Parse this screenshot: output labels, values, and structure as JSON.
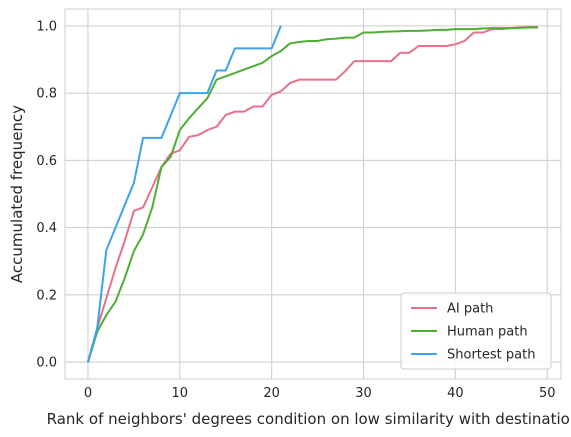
{
  "chart_data": {
    "type": "line",
    "title": "",
    "xlabel": "Rank of neighbors' degrees condition on low similarity with destination",
    "ylabel": "Accumulated frequency",
    "xlim": [
      -2.5,
      51.5
    ],
    "ylim": [
      -0.05,
      1.05
    ],
    "xticks": [
      0,
      10,
      20,
      30,
      40,
      50
    ],
    "yticks": [
      0.0,
      0.2,
      0.4,
      0.6,
      0.8,
      1.0
    ],
    "xtick_labels": [
      "0",
      "10",
      "20",
      "30",
      "40",
      "50"
    ],
    "ytick_labels": [
      "0.0",
      "0.2",
      "0.4",
      "0.6",
      "0.8",
      "1.0"
    ],
    "grid": true,
    "legend_position": "bottom-right",
    "series": [
      {
        "name": "AI path",
        "color": "#e8708a",
        "x": [
          0,
          1,
          2,
          3,
          4,
          5,
          6,
          7,
          8,
          9,
          10,
          11,
          12,
          13,
          14,
          15,
          16,
          17,
          18,
          19,
          20,
          21,
          22,
          23,
          24,
          25,
          26,
          27,
          28,
          29,
          30,
          31,
          32,
          33,
          34,
          35,
          36,
          37,
          38,
          39,
          40,
          41,
          42,
          43,
          44,
          45,
          46,
          47,
          48,
          49
        ],
        "y": [
          0.0,
          0.1,
          0.19,
          0.28,
          0.36,
          0.45,
          0.46,
          0.52,
          0.58,
          0.62,
          0.63,
          0.67,
          0.675,
          0.69,
          0.7,
          0.735,
          0.745,
          0.745,
          0.76,
          0.76,
          0.795,
          0.805,
          0.83,
          0.84,
          0.84,
          0.84,
          0.84,
          0.84,
          0.865,
          0.895,
          0.895,
          0.895,
          0.895,
          0.895,
          0.92,
          0.92,
          0.94,
          0.94,
          0.94,
          0.94,
          0.945,
          0.955,
          0.98,
          0.98,
          0.99,
          0.99,
          0.993,
          0.995,
          0.997,
          0.997
        ]
      },
      {
        "name": "Human path",
        "color": "#4daf32",
        "x": [
          0,
          1,
          2,
          3,
          4,
          5,
          6,
          7,
          8,
          9,
          10,
          11,
          12,
          13,
          14,
          15,
          16,
          17,
          18,
          19,
          20,
          21,
          22,
          23,
          24,
          25,
          26,
          27,
          28,
          29,
          30,
          31,
          32,
          33,
          34,
          35,
          36,
          37,
          38,
          39,
          40,
          41,
          42,
          43,
          44,
          45,
          46,
          47,
          48,
          49
        ],
        "y": [
          0.0,
          0.09,
          0.14,
          0.18,
          0.25,
          0.33,
          0.38,
          0.46,
          0.58,
          0.61,
          0.69,
          0.725,
          0.755,
          0.785,
          0.84,
          0.85,
          0.86,
          0.87,
          0.88,
          0.89,
          0.91,
          0.925,
          0.948,
          0.952,
          0.955,
          0.955,
          0.96,
          0.962,
          0.965,
          0.965,
          0.98,
          0.98,
          0.982,
          0.983,
          0.984,
          0.985,
          0.985,
          0.986,
          0.988,
          0.988,
          0.99,
          0.99,
          0.99,
          0.992,
          0.993,
          0.993,
          0.993,
          0.994,
          0.995,
          0.995
        ]
      },
      {
        "name": "Shortest path",
        "color": "#3ba3ec",
        "x": [
          0,
          1,
          2,
          3,
          4,
          5,
          6,
          7,
          8,
          9,
          10,
          11,
          12,
          13,
          14,
          15,
          16,
          17,
          18,
          19,
          20,
          21
        ],
        "y": [
          0.0,
          0.1,
          0.333,
          0.4,
          0.467,
          0.533,
          0.667,
          0.667,
          0.667,
          0.733,
          0.8,
          0.8,
          0.8,
          0.8,
          0.867,
          0.867,
          0.933,
          0.933,
          0.933,
          0.933,
          0.933,
          1.0
        ]
      }
    ]
  }
}
